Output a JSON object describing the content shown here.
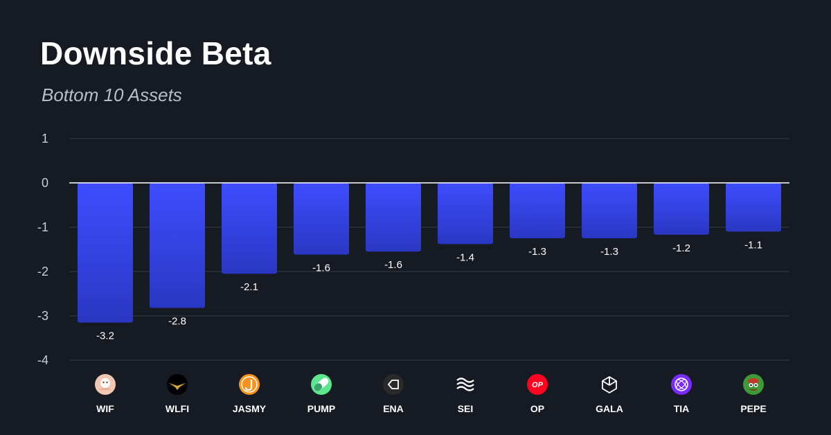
{
  "title": "Downside Beta",
  "subtitle": "Bottom 10 Assets",
  "colors": {
    "background": "#161a22",
    "bar_top": "#3e4dff",
    "bar_bottom": "#2a37c2",
    "grid": "#2a2f3a",
    "zero_line": "#ffffff"
  },
  "chart_data": {
    "type": "bar",
    "title": "Downside Beta",
    "subtitle": "Bottom 10 Assets",
    "categories": [
      "WIF",
      "WLFI",
      "JASMY",
      "PUMP",
      "ENA",
      "SEI",
      "OP",
      "GALA",
      "TIA",
      "PEPE"
    ],
    "values": [
      -3.15,
      -2.82,
      -2.05,
      -1.62,
      -1.55,
      -1.38,
      -1.25,
      -1.25,
      -1.17,
      -1.1
    ],
    "value_labels": [
      "-3.2",
      "-2.8",
      "-2.1",
      "-1.6",
      "-1.6",
      "-1.4",
      "-1.3",
      "-1.3",
      "-1.2",
      "-1.1"
    ],
    "y_ticks": [
      1,
      0,
      -1,
      -2,
      -3,
      -4
    ],
    "y_tick_labels": [
      "1",
      "0",
      "-1",
      "-2",
      "-3",
      "-4"
    ],
    "ylim": [
      -4,
      1
    ],
    "grid": true,
    "icons": [
      {
        "name": "wif-icon",
        "color": "#f1c7b4"
      },
      {
        "name": "wlfi-icon",
        "color": "#000000"
      },
      {
        "name": "jasmy-icon",
        "color": "#f7931a"
      },
      {
        "name": "pump-icon",
        "color": "#5ee68f"
      },
      {
        "name": "ena-icon",
        "color": "#2a2a2a"
      },
      {
        "name": "sei-icon",
        "color": "#161a22"
      },
      {
        "name": "op-icon",
        "color": "#ff0420"
      },
      {
        "name": "gala-icon",
        "color": "#161a22"
      },
      {
        "name": "tia-icon",
        "color": "#7b2bf9"
      },
      {
        "name": "pepe-icon",
        "color": "#3d9a36"
      }
    ]
  }
}
